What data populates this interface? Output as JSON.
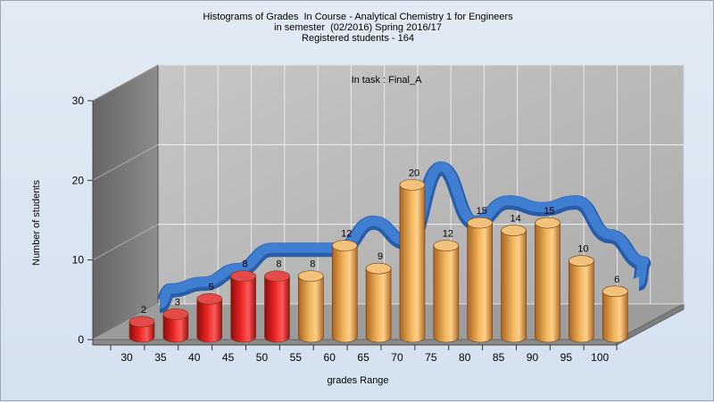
{
  "chart_data": {
    "type": "bar",
    "title_lines": [
      "Histograms of Grades  In Course - Analytical Chemistry 1 for Engineers",
      "in semester  (02/2016) Spring 2016/17",
      "Registered students - 164"
    ],
    "subtitle": "In task : Final_A",
    "xlabel": "grades Range",
    "ylabel": "Number of students",
    "categories": [
      "30",
      "35",
      "40",
      "45",
      "50",
      "55",
      "60",
      "65",
      "70",
      "75",
      "80",
      "85",
      "90",
      "95",
      "100"
    ],
    "values": [
      2,
      3,
      5,
      8,
      8,
      8,
      12,
      9,
      20,
      12,
      15,
      14,
      15,
      10,
      6
    ],
    "ylim": [
      0,
      30
    ],
    "yticks": [
      0,
      10,
      20,
      30
    ],
    "grid": true,
    "series": [
      {
        "kind": "bars",
        "values": [
          2,
          3,
          5,
          8,
          8,
          8,
          12,
          9,
          20,
          12,
          15,
          14,
          15,
          10,
          6
        ]
      },
      {
        "kind": "smooth-ribbon",
        "values": [
          2,
          3,
          5,
          8,
          8,
          8,
          12,
          9,
          20,
          12,
          15,
          14,
          15,
          10,
          6
        ]
      }
    ],
    "colors": {
      "fail_bar": "#d81a1a",
      "pass_bar": "#e3a24a",
      "ribbon": "#2f6bbf",
      "back_wall": "#b8b8b8",
      "side_wall": "#7a7a7a",
      "floor": "#a0a0a0"
    },
    "fail_count": 5
  }
}
